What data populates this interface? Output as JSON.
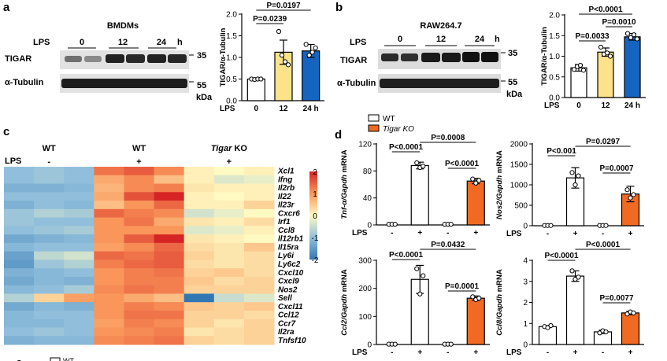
{
  "panel_letters": {
    "a": "a",
    "b": "b",
    "c": "c",
    "d": "d",
    "e": "e"
  },
  "lps_label": "LPS",
  "kda_label": "kDa",
  "blot_a": {
    "title": "BMDMs",
    "lanes": [
      "0",
      "12",
      "24"
    ],
    "unit": "h",
    "rows": [
      "TIGAR",
      "α-Tubulin"
    ],
    "markers": [
      "35",
      "55"
    ]
  },
  "blot_b": {
    "title": "RAW264.7",
    "lanes": [
      "0",
      "12",
      "24"
    ],
    "unit": "h",
    "rows": [
      "TIGAR",
      "α-Tubulin"
    ],
    "markers": [
      "35",
      "55"
    ]
  },
  "chart_data": [
    {
      "id": "a_bar",
      "type": "bar",
      "ylabel": "TIGAR/α-Tubulin",
      "ylim": [
        0,
        2.0
      ],
      "yticks": [
        "0.0",
        "0.5",
        "1.0",
        "1.5",
        "2.0"
      ],
      "categories": [
        "0",
        "12",
        "24 h"
      ],
      "values": [
        0.5,
        1.12,
        1.15
      ],
      "errors": [
        0.02,
        0.28,
        0.15
      ],
      "colors": [
        "#ffffff",
        "#fce38a",
        "#1565c0"
      ],
      "points": [
        [
          0.5,
          0.49,
          0.5,
          0.5
        ],
        [
          1.6,
          1.05,
          0.9,
          0.83
        ],
        [
          1.3,
          1.05,
          1.12,
          1.22
        ]
      ],
      "pvalues": [
        "P=0.0197",
        "P=0.0239"
      ]
    },
    {
      "id": "b_bar",
      "type": "bar",
      "ylabel": "TIGAR/α-Tubulin",
      "ylim": [
        0,
        2.0
      ],
      "yticks": [
        "0.0",
        "0.5",
        "1.0",
        "1.5",
        "2.0"
      ],
      "categories": [
        "0",
        "12",
        "24 h"
      ],
      "values": [
        0.72,
        1.1,
        1.47
      ],
      "errors": [
        0.08,
        0.1,
        0.08
      ],
      "colors": [
        "#ffffff",
        "#fce38a",
        "#1565c0"
      ],
      "points": [
        [
          0.68,
          0.75,
          0.78,
          0.66
        ],
        [
          1.22,
          1.05,
          1.08,
          1.0
        ],
        [
          1.55,
          1.45,
          1.52,
          1.42
        ]
      ],
      "pvalues": [
        "P<0.0001",
        "P=0.0010",
        "P=0.0033"
      ]
    },
    {
      "id": "c_heatmap",
      "type": "heatmap",
      "groups": [
        {
          "label": "WT",
          "lps": "-"
        },
        {
          "label": "WT",
          "lps": "+"
        },
        {
          "label": "Tigar KO",
          "lps": "+"
        }
      ],
      "genes": [
        "Xcl1",
        "Ifng",
        "Il2rb",
        "Il22",
        "Il23r",
        "Cxcr6",
        "Irf1",
        "Ccl8",
        "Il12rb1",
        "Il15ra",
        "Ly6i",
        "Ly6c2",
        "Cxcl10",
        "Cxcl9",
        "Nos2",
        "Sell",
        "Cxcl11",
        "Ccl12",
        "Ccr7",
        "Il2ra",
        "Tnfsf10"
      ],
      "values": [
        [
          -1.0,
          -0.9,
          -1.0,
          1.3,
          1.5,
          1.1,
          0.1,
          0.0,
          0.1
        ],
        [
          -1.0,
          -0.9,
          -1.0,
          0.8,
          1.1,
          0.6,
          0.1,
          -0.3,
          -0.2
        ],
        [
          -1.2,
          -1.2,
          -1.1,
          0.7,
          1.1,
          1.2,
          0.2,
          0.1,
          0.1
        ],
        [
          -1.0,
          -1.0,
          -1.0,
          0.8,
          1.6,
          2.1,
          0.1,
          0.0,
          0.1
        ],
        [
          -1.2,
          -1.0,
          -1.1,
          0.6,
          1.0,
          1.4,
          0.1,
          0.1,
          0.4
        ],
        [
          -0.9,
          -0.7,
          -0.8,
          1.4,
          1.2,
          1.1,
          -0.4,
          -0.2,
          0.0
        ],
        [
          -0.9,
          -1.0,
          -1.0,
          1.0,
          1.3,
          0.8,
          0.2,
          0.1,
          0.3
        ],
        [
          -1.0,
          -0.9,
          -0.8,
          1.0,
          1.0,
          1.0,
          -0.3,
          -0.2,
          0.1
        ],
        [
          -1.3,
          -1.2,
          -1.1,
          1.0,
          1.5,
          2.0,
          0.2,
          0.1,
          0.0
        ],
        [
          -1.1,
          -1.0,
          -1.0,
          0.9,
          1.1,
          1.4,
          0.3,
          0.2,
          0.5
        ],
        [
          -1.4,
          -0.6,
          -0.4,
          1.4,
          1.3,
          1.5,
          0.4,
          0.2,
          0.3
        ],
        [
          -1.5,
          -0.9,
          -0.7,
          1.2,
          1.4,
          1.5,
          0.3,
          0.2,
          0.3
        ],
        [
          -1.2,
          -1.1,
          -1.0,
          1.0,
          1.2,
          1.3,
          0.4,
          0.5,
          0.3
        ],
        [
          -1.3,
          -1.1,
          -1.2,
          1.0,
          1.2,
          1.2,
          0.5,
          0.3,
          0.4
        ],
        [
          -1.1,
          -1.0,
          -0.8,
          1.1,
          1.3,
          1.2,
          0.4,
          0.4,
          0.4
        ],
        [
          -0.7,
          0.4,
          0.9,
          1.0,
          0.8,
          0.6,
          -2.0,
          -0.5,
          -0.3
        ],
        [
          -1.3,
          -1.1,
          -1.2,
          1.0,
          1.2,
          1.1,
          0.5,
          0.4,
          0.5
        ],
        [
          -1.1,
          -1.0,
          -1.0,
          1.0,
          1.3,
          1.3,
          0.4,
          0.4,
          0.3
        ],
        [
          -1.1,
          -1.1,
          -1.0,
          0.9,
          1.2,
          1.1,
          0.4,
          0.2,
          0.4
        ],
        [
          -1.0,
          -0.9,
          -1.0,
          1.0,
          1.1,
          1.2,
          0.2,
          0.3,
          0.4
        ],
        [
          -1.2,
          -1.1,
          -1.1,
          1.1,
          1.2,
          1.3,
          0.4,
          0.3,
          0.4
        ]
      ],
      "scale": {
        "min": -2,
        "max": 2,
        "ticks": [
          "2",
          "1",
          "0",
          "-1",
          "-2"
        ]
      }
    },
    {
      "id": "d_tnf",
      "type": "bar",
      "ylabel_gene": "Tnf-α/Gapdh",
      "ylabel_suffix": " mRNA",
      "ylim": [
        0,
        120
      ],
      "yticks": [
        "0",
        "40",
        "80",
        "120"
      ],
      "lps": [
        "-",
        "+",
        "-",
        "+"
      ],
      "values": [
        1,
        88,
        1,
        65
      ],
      "errors": [
        0.5,
        5,
        0.5,
        4
      ],
      "colors": [
        "#ffffff",
        "#ffffff",
        "#ffffff",
        "#f06a23"
      ],
      "points": [
        [
          1,
          1,
          1
        ],
        [
          92,
          85,
          87
        ],
        [
          1,
          1,
          1
        ],
        [
          68,
          62,
          66
        ]
      ],
      "pvalues": [
        "P<0.0001",
        "P=0.0008",
        "P<0.0001"
      ]
    },
    {
      "id": "d_nos2",
      "type": "bar",
      "ylabel_gene": "Nos2/Gapdh",
      "ylabel_suffix": " mRNA",
      "ylim": [
        0,
        2000
      ],
      "yticks": [
        "0",
        "500",
        "1000",
        "1500",
        "2000"
      ],
      "lps": [
        "-",
        "+",
        "-",
        "+"
      ],
      "values": [
        5,
        1170,
        5,
        775
      ],
      "errors": [
        2,
        250,
        2,
        190
      ],
      "colors": [
        "#ffffff",
        "#ffffff",
        "#ffffff",
        "#f06a23"
      ],
      "points": [
        [
          5,
          5,
          5
        ],
        [
          1300,
          1000,
          1220
        ],
        [
          5,
          5,
          5
        ],
        [
          880,
          680,
          760
        ]
      ],
      "pvalues": [
        "P<0.001",
        "P=0.0297",
        "P=0.0007"
      ]
    },
    {
      "id": "d_ccl2",
      "type": "bar",
      "ylabel_gene": "Ccl2/Gapdh",
      "ylabel_suffix": " mRNA",
      "ylim": [
        0,
        300
      ],
      "yticks": [
        "0",
        "100",
        "200",
        "300"
      ],
      "lps": [
        "-",
        "+",
        "-",
        "+"
      ],
      "values": [
        1,
        232,
        1,
        165
      ],
      "errors": [
        0.5,
        50,
        0.5,
        8
      ],
      "colors": [
        "#ffffff",
        "#ffffff",
        "#ffffff",
        "#f06a23"
      ],
      "points": [
        [
          1,
          1,
          1
        ],
        [
          270,
          180,
          245
        ],
        [
          1,
          1,
          1
        ],
        [
          170,
          160,
          165
        ]
      ],
      "pvalues": [
        "P<0.0001",
        "P=0.0432",
        "P=0.0001"
      ]
    },
    {
      "id": "d_ccl8",
      "type": "bar",
      "ylabel_gene": "Ccl8/Gapdh",
      "ylabel_suffix": " mRNA",
      "ylim": [
        0,
        4
      ],
      "yticks": [
        "0",
        "1",
        "2",
        "3",
        "4"
      ],
      "lps": [
        "-",
        "+",
        "-",
        "+"
      ],
      "values": [
        0.85,
        3.25,
        0.6,
        1.5
      ],
      "errors": [
        0.05,
        0.25,
        0.08,
        0.08
      ],
      "colors": [
        "#ffffff",
        "#ffffff",
        "#ffffff",
        "#f06a23"
      ],
      "points": [
        [
          0.85,
          0.8,
          0.9
        ],
        [
          3.5,
          3.1,
          3.2
        ],
        [
          0.55,
          0.65,
          0.6
        ],
        [
          1.45,
          1.55,
          1.5
        ]
      ],
      "pvalues": [
        "P<0.0001",
        "P<0.0001",
        "P=0.0077"
      ]
    }
  ],
  "legend_d": [
    {
      "label": "WT",
      "color": "#ffffff"
    },
    {
      "label": "Tigar KO",
      "color": "#f06a23"
    }
  ],
  "legend_e": [
    {
      "label": "WT",
      "color": "#ffffff"
    }
  ]
}
